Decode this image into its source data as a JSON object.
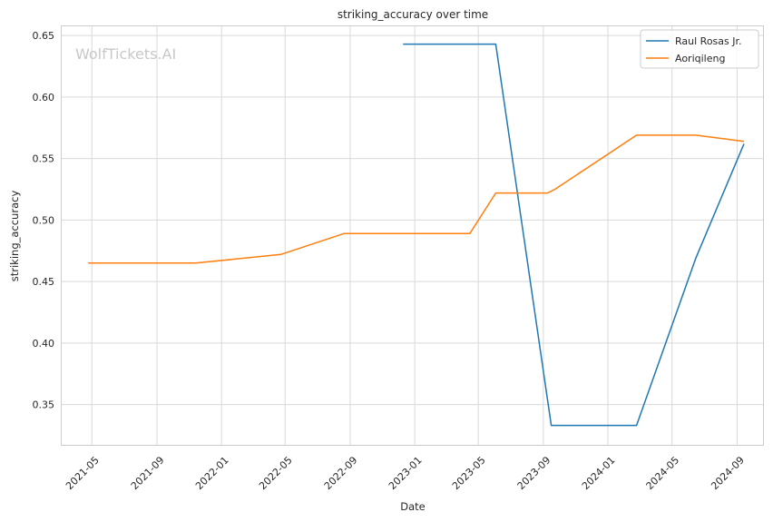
{
  "chart_data": {
    "type": "line",
    "title": "striking_accuracy over time",
    "xlabel": "Date",
    "ylabel": "striking_accuracy",
    "watermark": "WolfTickets.AI",
    "grid": true,
    "legend_position": "top-right",
    "xlim": [
      "2021-03-05",
      "2024-10-20"
    ],
    "ylim": [
      0.3172,
      0.6575
    ],
    "x_ticks": [
      "2021-05",
      "2021-09",
      "2022-01",
      "2022-05",
      "2022-09",
      "2023-01",
      "2023-05",
      "2023-09",
      "2024-01",
      "2024-05",
      "2024-09"
    ],
    "y_ticks": [
      "0.35",
      "0.40",
      "0.45",
      "0.50",
      "0.55",
      "0.60",
      "0.65"
    ],
    "series": [
      {
        "name": "Raul Rosas Jr.",
        "color": "#1f77b4",
        "x": [
          "2022-12-10",
          "2023-06-03",
          "2023-09-16",
          "2024-02-24",
          "2024-06-15",
          "2024-09-14"
        ],
        "y": [
          0.643,
          0.643,
          0.333,
          0.333,
          0.469,
          0.562
        ]
      },
      {
        "name": "Aoriqileng",
        "color": "#ff7f0e",
        "x": [
          "2021-04-24",
          "2021-11-13",
          "2022-04-23",
          "2022-08-20",
          "2023-04-15",
          "2023-06-03",
          "2023-09-09",
          "2023-09-23",
          "2024-02-24",
          "2024-06-15",
          "2024-09-14"
        ],
        "y": [
          0.465,
          0.465,
          0.472,
          0.489,
          0.489,
          0.522,
          0.522,
          0.525,
          0.569,
          0.569,
          0.564
        ]
      }
    ]
  }
}
